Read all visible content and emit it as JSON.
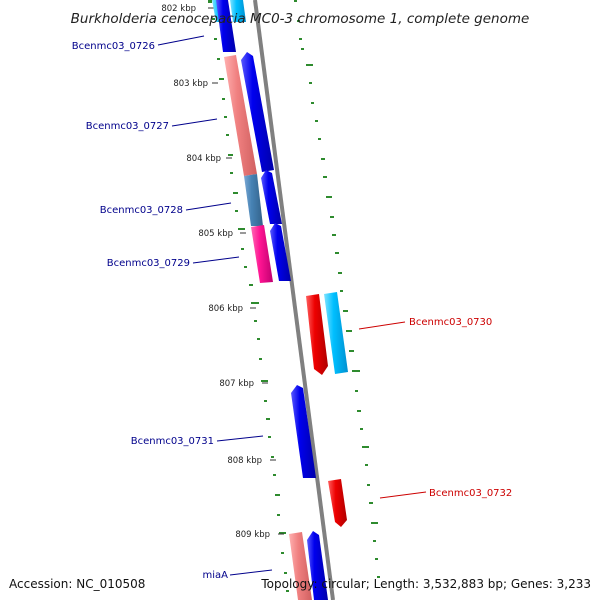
{
  "title": "Burkholderia cenocepacia MC0-3 chromosome 1, complete genome",
  "footer": {
    "accession": "Accession: NC_010508",
    "topology": "Topology: circular; Length: 3,532,883 bp; Genes: 3,233"
  },
  "ticks": [
    "802 kbp",
    "803 kbp",
    "804 kbp",
    "805 kbp",
    "806 kbp",
    "807 kbp",
    "808 kbp",
    "809 kbp"
  ],
  "gene_labels": [
    "Bcenmc03_0726",
    "Bcenmc03_0727",
    "Bcenmc03_0728",
    "Bcenmc03_0729",
    "Bcenmc03_0730",
    "Bcenmc03_0731",
    "Bcenmc03_0732",
    "miaA"
  ],
  "colors": {
    "forward_cds": "#0000ee",
    "forward_gene": "#00bfff",
    "reverse_cds": "#ee0000",
    "reverse_gene": "#f08080",
    "steelblue_feature": "#4682b4",
    "magenta_feature": "#ff1493",
    "backbone": "#808080",
    "gc_skew": "#006400",
    "label_left": "#00008b",
    "label_right": "#cc0000"
  }
}
